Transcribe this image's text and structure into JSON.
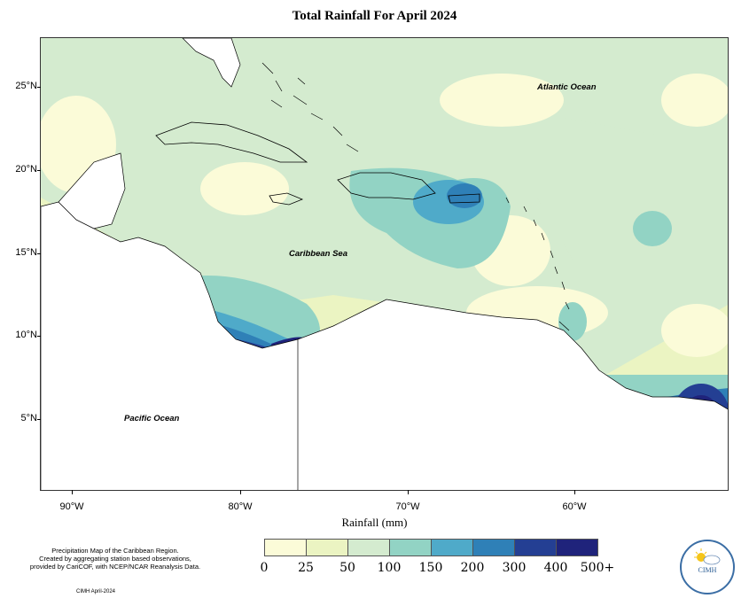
{
  "title": "Total Rainfall For April 2024",
  "xlabel": "Rainfall (mm)",
  "lat_ticks": [
    "25°N",
    "20°N",
    "15°N",
    "10°N",
    "5°N"
  ],
  "lon_ticks": [
    "90°W",
    "80°W",
    "70°W",
    "60°W"
  ],
  "ocean_labels": [
    "Atlantic Ocean",
    "Caribbean Sea",
    "Pacific Ocean"
  ],
  "legend": {
    "values": [
      "0",
      "25",
      "50",
      "100",
      "150",
      "200",
      "300",
      "400",
      "500+"
    ],
    "colors": [
      "#fbfbd8",
      "#ebf4c2",
      "#d4ebcf",
      "#92d3c4",
      "#4faac9",
      "#2f80b7",
      "#243f93",
      "#1f237b",
      "#0c1d4e"
    ]
  },
  "footnote": {
    "line1": "Precipitation Map of the Caribbean Region.",
    "line2": "Created by aggregating station based observations,",
    "line3": "provided by CariCOF, with NCEP/NCAR Reanalysis Data.",
    "credit": "CIMH April-2024"
  },
  "logo_text": "CIMH"
}
